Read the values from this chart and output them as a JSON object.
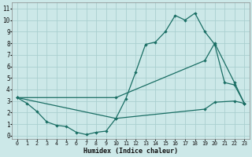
{
  "xlabel": "Humidex (Indice chaleur)",
  "bg_color": "#cce8e8",
  "grid_color": "#aacfcf",
  "line_color": "#1a6e64",
  "xlim": [
    -0.5,
    23.5
  ],
  "ylim": [
    -0.3,
    11.5
  ],
  "line1_x": [
    0,
    1,
    2,
    3,
    4,
    5,
    6,
    7,
    8,
    9,
    10,
    11,
    12,
    13,
    14,
    15,
    16,
    17,
    18,
    19,
    20,
    21,
    22,
    23
  ],
  "line1_y": [
    3.3,
    2.8,
    2.1,
    1.2,
    0.9,
    0.8,
    0.3,
    0.1,
    0.3,
    0.4,
    1.5,
    3.2,
    5.5,
    7.9,
    8.1,
    9.0,
    10.4,
    10.0,
    10.6,
    9.0,
    7.9,
    4.6,
    4.4,
    2.8
  ],
  "line2_x": [
    0,
    10,
    19,
    20,
    22,
    23
  ],
  "line2_y": [
    3.3,
    3.3,
    6.5,
    8.0,
    4.6,
    2.8
  ],
  "line3_x": [
    0,
    10,
    19,
    20,
    22,
    23
  ],
  "line3_y": [
    3.3,
    1.5,
    2.3,
    2.9,
    3.0,
    2.8
  ]
}
